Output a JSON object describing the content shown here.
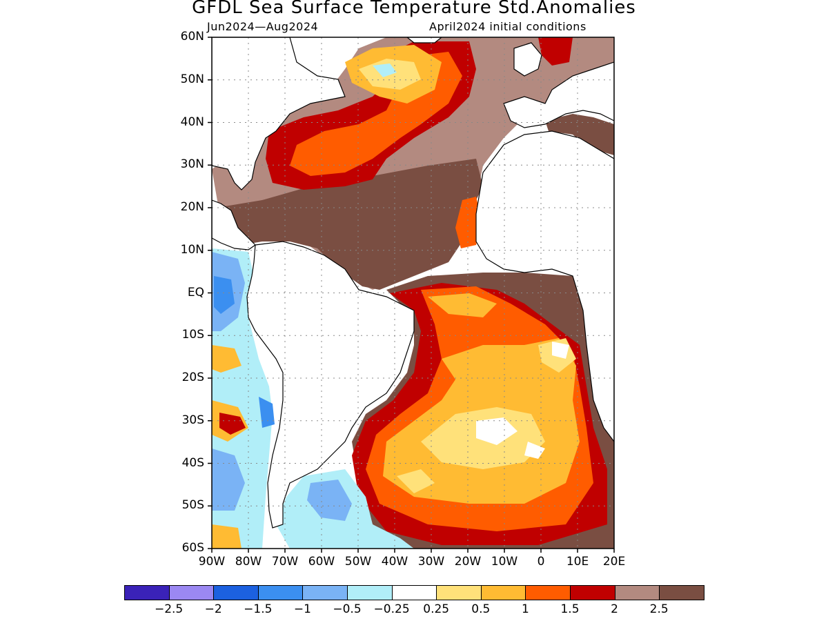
{
  "title": "GFDL Sea Surface Temperature Std.Anomalies",
  "subtitle_left": "Jun2024—Aug2024",
  "subtitle_right": "April2024 initial conditions",
  "axes": {
    "lon_range": [
      -90,
      20
    ],
    "lat_range": [
      -60,
      60
    ],
    "y_ticks": [
      {
        "label": "60N",
        "lat": 60
      },
      {
        "label": "50N",
        "lat": 50
      },
      {
        "label": "40N",
        "lat": 40
      },
      {
        "label": "30N",
        "lat": 30
      },
      {
        "label": "20N",
        "lat": 20
      },
      {
        "label": "10N",
        "lat": 10
      },
      {
        "label": "EQ",
        "lat": 0
      },
      {
        "label": "10S",
        "lat": -10
      },
      {
        "label": "20S",
        "lat": -20
      },
      {
        "label": "30S",
        "lat": -30
      },
      {
        "label": "40S",
        "lat": -40
      },
      {
        "label": "50S",
        "lat": -50
      },
      {
        "label": "60S",
        "lat": -60
      }
    ],
    "x_ticks": [
      {
        "label": "90W",
        "lon": -90
      },
      {
        "label": "80W",
        "lon": -80
      },
      {
        "label": "70W",
        "lon": -70
      },
      {
        "label": "60W",
        "lon": -60
      },
      {
        "label": "50W",
        "lon": -50
      },
      {
        "label": "40W",
        "lon": -40
      },
      {
        "label": "30W",
        "lon": -30
      },
      {
        "label": "20W",
        "lon": -20
      },
      {
        "label": "10W",
        "lon": -10
      },
      {
        "label": "0",
        "lon": 0
      },
      {
        "label": "10E",
        "lon": 10
      },
      {
        "label": "20E",
        "lon": 20
      }
    ],
    "grid": "dotted"
  },
  "colorbar": {
    "colors": [
      "#3a22b8",
      "#9b88f2",
      "#1c61e0",
      "#3b8ff0",
      "#7ab3f5",
      "#b1eef8",
      "#ffffff",
      "#ffe17a",
      "#ffbb33",
      "#ff5c00",
      "#c00000",
      "#b38a80",
      "#7a4e42"
    ],
    "labels": [
      "−2.5",
      "−2",
      "−1.5",
      "−1",
      "−0.5",
      "−0.25",
      "0.25",
      "0.5",
      "1",
      "1.5",
      "2",
      "2.5"
    ]
  }
}
